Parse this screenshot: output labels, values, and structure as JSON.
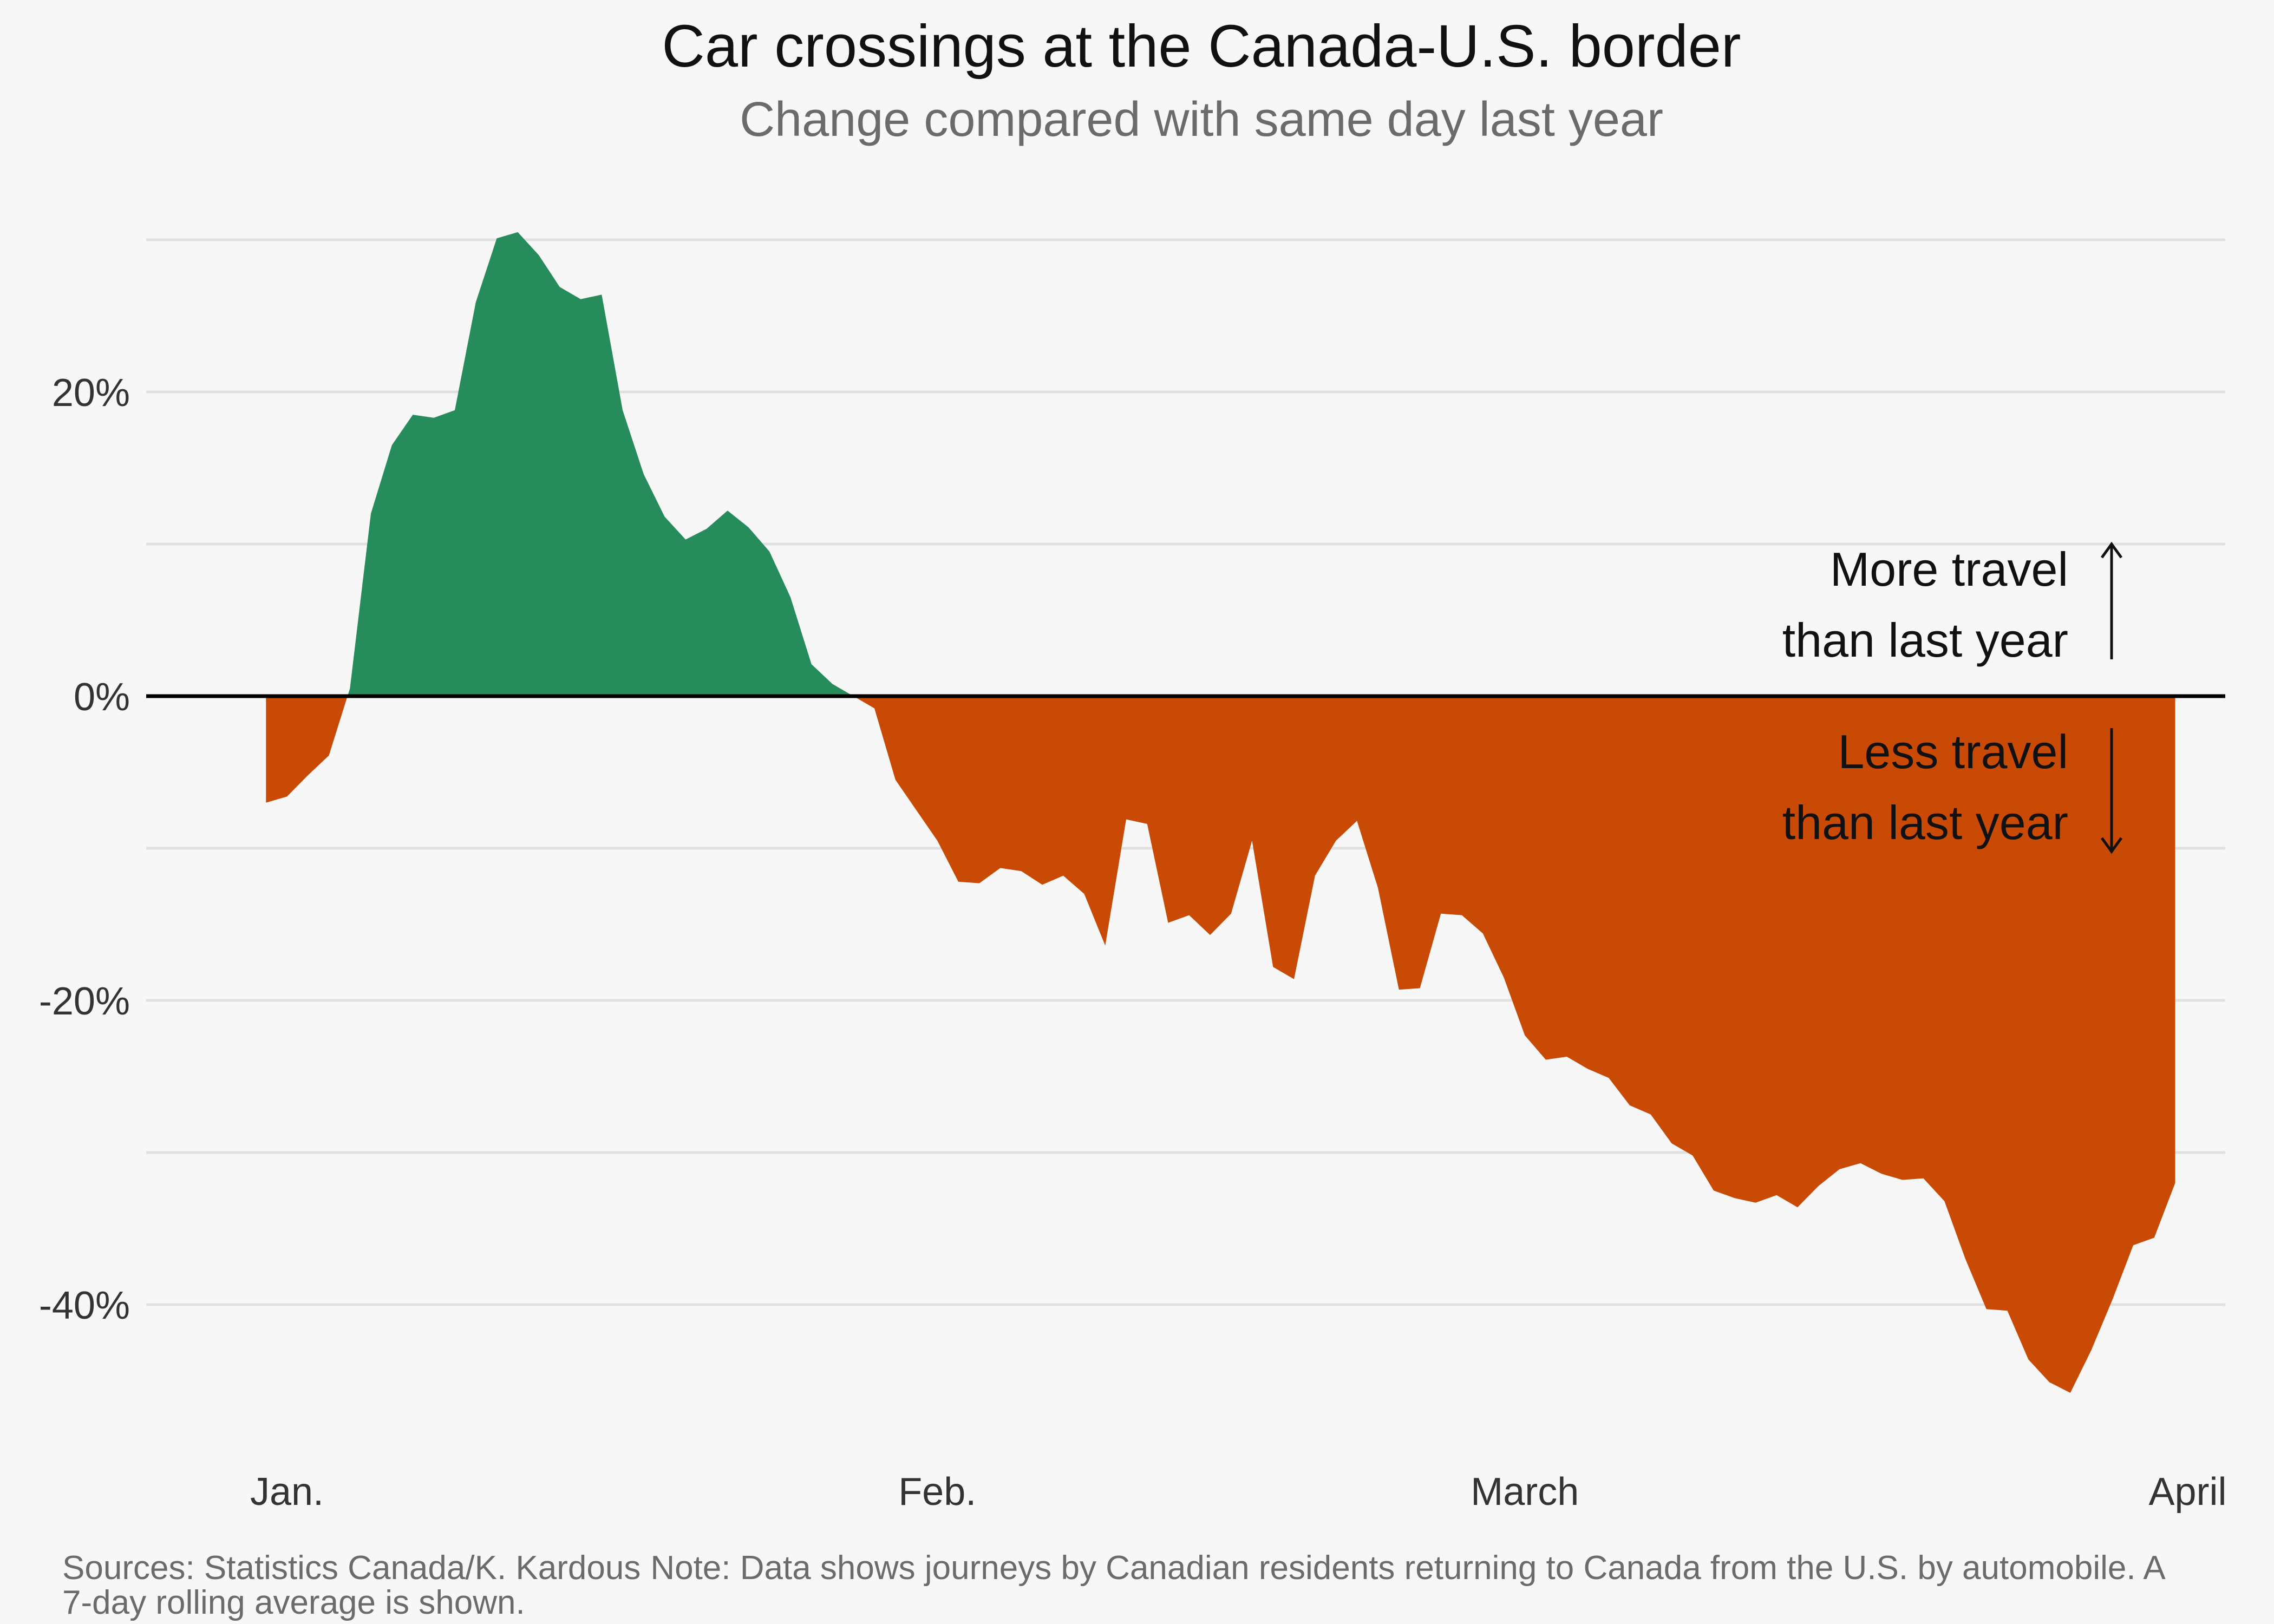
{
  "title": "Car crossings at the Canada-U.S. border",
  "subtitle": "Change compared with same day last year",
  "footer": {
    "sources": "Sources: Statistics Canada/K. Kardous",
    "note": "Note: Data shows journeys by Canadian residents returning to Canada from the U.S. by automobile. A 7-day rolling average is shown."
  },
  "annotations": {
    "more": [
      "More travel",
      "than last year"
    ],
    "less": [
      "Less travel",
      "than last year"
    ]
  },
  "colors": {
    "positive": "#268c5c",
    "negative": "#c94a05",
    "grid": "#e0e0e0",
    "zero_line": "#000000"
  },
  "chart_data": {
    "type": "area",
    "xlim": [
      "2024-12-27",
      "2025-04-04"
    ],
    "ylim": [
      -50,
      30
    ],
    "y_unit": "%",
    "x_ticks": [
      {
        "label": "Jan.",
        "date": "2025-01-01"
      },
      {
        "label": "Feb.",
        "date": "2025-02-01"
      },
      {
        "label": "March",
        "date": "2025-03-01"
      },
      {
        "label": "April",
        "date": "2025-04-01"
      }
    ],
    "y_ticks": [
      {
        "label": "20%",
        "value": 20
      },
      {
        "label": "0%",
        "value": 0
      },
      {
        "label": "-20%",
        "value": -20
      },
      {
        "label": "-40%",
        "value": -40
      }
    ],
    "grid_values": [
      30,
      20,
      10,
      0,
      -10,
      -20,
      -30,
      -40
    ],
    "zero_line": 0,
    "series": [
      {
        "x": [
          "2024-12-31",
          "2025-01-01",
          "2025-01-02",
          "2025-01-03",
          "2025-01-04",
          "2025-01-05",
          "2025-01-06",
          "2025-01-07",
          "2025-01-08",
          "2025-01-09",
          "2025-01-10",
          "2025-01-11",
          "2025-01-12",
          "2025-01-13",
          "2025-01-14",
          "2025-01-15",
          "2025-01-16",
          "2025-01-17",
          "2025-01-18",
          "2025-01-19",
          "2025-01-20",
          "2025-01-21",
          "2025-01-22",
          "2025-01-23",
          "2025-01-24",
          "2025-01-25",
          "2025-01-26",
          "2025-01-27",
          "2025-01-28",
          "2025-01-29",
          "2025-01-30",
          "2025-01-31",
          "2025-02-01",
          "2025-02-02",
          "2025-02-03",
          "2025-02-04",
          "2025-02-05",
          "2025-02-06",
          "2025-02-07",
          "2025-02-08",
          "2025-02-09",
          "2025-02-10",
          "2025-02-11",
          "2025-02-12",
          "2025-02-13",
          "2025-02-14",
          "2025-02-15",
          "2025-02-16",
          "2025-02-17",
          "2025-02-18",
          "2025-02-19",
          "2025-02-20",
          "2025-02-21",
          "2025-02-22",
          "2025-02-23",
          "2025-02-24",
          "2025-02-25",
          "2025-02-26",
          "2025-02-27",
          "2025-02-28",
          "2025-03-01",
          "2025-03-02",
          "2025-03-03",
          "2025-03-04",
          "2025-03-05",
          "2025-03-06",
          "2025-03-07",
          "2025-03-08",
          "2025-03-09",
          "2025-03-10",
          "2025-03-11",
          "2025-03-12",
          "2025-03-13",
          "2025-03-14",
          "2025-03-15",
          "2025-03-16",
          "2025-03-17",
          "2025-03-18",
          "2025-03-19",
          "2025-03-20",
          "2025-03-21",
          "2025-03-22",
          "2025-03-23",
          "2025-03-24",
          "2025-03-25",
          "2025-03-26",
          "2025-03-27",
          "2025-03-28",
          "2025-03-29",
          "2025-03-30",
          "2025-03-31",
          "2025-04-01"
        ],
        "y": [
          -7,
          -6.6,
          -5.2,
          -3.9,
          0.5,
          12,
          16.5,
          18.5,
          18.3,
          18.8,
          25.9,
          30.1,
          30.5,
          29,
          26.9,
          26.1,
          26.4,
          18.8,
          14.6,
          11.8,
          10.3,
          11,
          12.2,
          11.1,
          9.5,
          6.5,
          2.1,
          0.8,
          0,
          -0.8,
          -5.5,
          -7.5,
          -9.5,
          -12.2,
          -12.3,
          -11.3,
          -11.5,
          -12.4,
          -11.8,
          -13,
          -16.4,
          -8.1,
          -8.4,
          -14.9,
          -14.4,
          -15.7,
          -14.3,
          -9.5,
          -17.8,
          -18.6,
          -11.8,
          -9.5,
          -8.2,
          -12.6,
          -19.3,
          -19.2,
          -14.3,
          -14.4,
          -15.6,
          -18.5,
          -22.3,
          -23.9,
          -23.7,
          -24.5,
          -25.1,
          -26.9,
          -27.5,
          -29.4,
          -30.2,
          -32.5,
          -33,
          -33.3,
          -32.8,
          -33.6,
          -32.2,
          -31.1,
          -30.7,
          -31.4,
          -31.8,
          -31.7,
          -33.2,
          -37,
          -40.3,
          -40.4,
          -43.6,
          -45.1,
          -45.8,
          -43,
          -39.7,
          -36.1,
          -35.6,
          -32
        ]
      }
    ]
  }
}
